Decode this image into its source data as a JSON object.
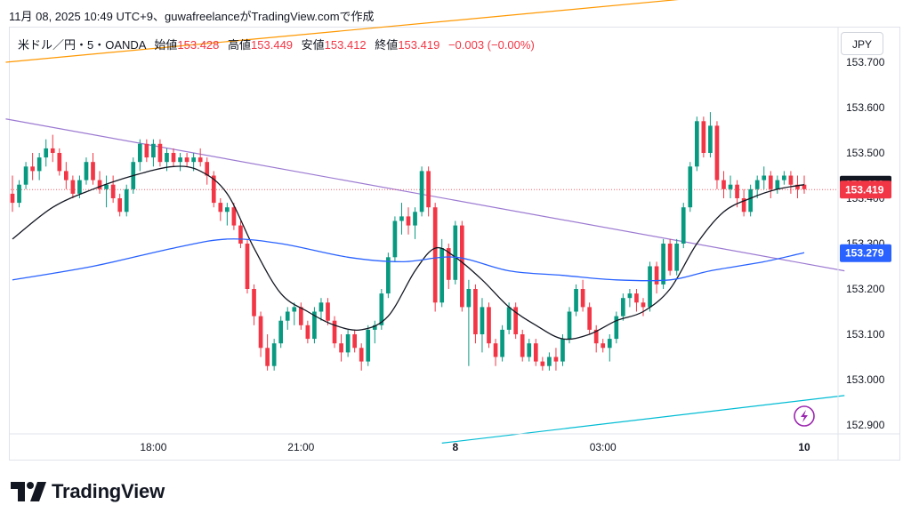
{
  "header": {
    "text": "11月 08, 2025 10:49 UTC+9、guwafreelanceがTradingView.comで作成"
  },
  "legend": {
    "symbol": "米ドル／円・5・OANDA",
    "open_label": "始値",
    "open": "153.428",
    "high_label": "高値",
    "high": "153.449",
    "low_label": "安値",
    "low": "153.412",
    "close_label": "終値",
    "close": "153.419",
    "change": "−0.003 (−0.00%)"
  },
  "currency_button": "JPY",
  "footer": {
    "brand": "TradingView"
  },
  "colors": {
    "up": "#089981",
    "down": "#f23645",
    "ma_short": "#131722",
    "ma_long": "#2962ff",
    "trend_upper": "#ff9800",
    "trend_mid": "#9c7ad2",
    "trend_lower": "#00bcd4"
  },
  "chart_data": {
    "type": "candlestick",
    "symbol": "USDJPY 5",
    "ylim": [
      152.86,
      153.74
    ],
    "y_ticks": [
      "153.700",
      "153.600",
      "153.500",
      "153.400",
      "153.300",
      "153.200",
      "153.100",
      "153.000",
      "152.900"
    ],
    "x_ticks": [
      "18:00",
      "21:00",
      "8",
      "03:00",
      "10"
    ],
    "price_labels": [
      {
        "value": "153.430",
        "style": "dark"
      },
      {
        "value": "153.419",
        "style": "red"
      },
      {
        "value": "153.279",
        "style": "blue"
      }
    ],
    "candles_ohlc": [
      [
        153.41,
        153.45,
        153.37,
        153.39
      ],
      [
        153.39,
        153.44,
        153.38,
        153.43
      ],
      [
        153.43,
        153.48,
        153.42,
        153.47
      ],
      [
        153.47,
        153.5,
        153.44,
        153.46
      ],
      [
        153.46,
        153.5,
        153.44,
        153.49
      ],
      [
        153.49,
        153.53,
        153.47,
        153.51
      ],
      [
        153.51,
        153.54,
        153.48,
        153.5
      ],
      [
        153.5,
        153.51,
        153.45,
        153.46
      ],
      [
        153.46,
        153.48,
        153.42,
        153.44
      ],
      [
        153.44,
        153.45,
        153.4,
        153.41
      ],
      [
        153.41,
        153.45,
        153.4,
        153.44
      ],
      [
        153.44,
        153.49,
        153.43,
        153.48
      ],
      [
        153.48,
        153.5,
        153.43,
        153.44
      ],
      [
        153.44,
        153.46,
        153.41,
        153.42
      ],
      [
        153.42,
        153.45,
        153.38,
        153.43
      ],
      [
        153.43,
        153.45,
        153.39,
        153.4
      ],
      [
        153.4,
        153.41,
        153.36,
        153.37
      ],
      [
        153.37,
        153.43,
        153.36,
        153.42
      ],
      [
        153.42,
        153.49,
        153.41,
        153.48
      ],
      [
        153.48,
        153.53,
        153.46,
        153.52
      ],
      [
        153.52,
        153.53,
        153.48,
        153.49
      ],
      [
        153.49,
        153.53,
        153.47,
        153.52
      ],
      [
        153.52,
        153.53,
        153.47,
        153.48
      ],
      [
        153.48,
        153.51,
        153.46,
        153.5
      ],
      [
        153.5,
        153.51,
        153.47,
        153.48
      ],
      [
        153.48,
        153.5,
        153.46,
        153.49
      ],
      [
        153.49,
        153.5,
        153.47,
        153.48
      ],
      [
        153.48,
        153.5,
        153.46,
        153.49
      ],
      [
        153.49,
        153.51,
        153.47,
        153.48
      ],
      [
        153.48,
        153.49,
        153.43,
        153.45
      ],
      [
        153.45,
        153.46,
        153.38,
        153.39
      ],
      [
        153.39,
        153.4,
        153.35,
        153.37
      ],
      [
        153.37,
        153.39,
        153.34,
        153.38
      ],
      [
        153.38,
        153.39,
        153.33,
        153.34
      ],
      [
        153.34,
        153.35,
        153.29,
        153.3
      ],
      [
        153.3,
        153.31,
        153.19,
        153.2
      ],
      [
        153.2,
        153.21,
        153.12,
        153.14
      ],
      [
        153.14,
        153.15,
        153.05,
        153.07
      ],
      [
        153.07,
        153.1,
        153.02,
        153.03
      ],
      [
        153.03,
        153.09,
        153.02,
        153.08
      ],
      [
        153.08,
        153.14,
        153.07,
        153.13
      ],
      [
        153.13,
        153.16,
        153.11,
        153.15
      ],
      [
        153.15,
        153.17,
        153.12,
        153.16
      ],
      [
        153.16,
        153.17,
        153.11,
        153.12
      ],
      [
        153.12,
        153.13,
        153.08,
        153.09
      ],
      [
        153.09,
        153.16,
        153.08,
        153.15
      ],
      [
        153.15,
        153.18,
        153.13,
        153.17
      ],
      [
        153.17,
        153.18,
        153.12,
        153.13
      ],
      [
        153.13,
        153.14,
        153.07,
        153.08
      ],
      [
        153.08,
        153.1,
        153.04,
        153.06
      ],
      [
        153.06,
        153.11,
        153.05,
        153.1
      ],
      [
        153.1,
        153.11,
        153.06,
        153.07
      ],
      [
        153.07,
        153.08,
        153.02,
        153.04
      ],
      [
        153.04,
        153.12,
        153.03,
        153.11
      ],
      [
        153.11,
        153.13,
        153.08,
        153.12
      ],
      [
        153.12,
        153.2,
        153.11,
        153.19
      ],
      [
        153.19,
        153.28,
        153.18,
        153.27
      ],
      [
        153.27,
        153.36,
        153.26,
        153.35
      ],
      [
        153.35,
        153.39,
        153.32,
        153.36
      ],
      [
        153.36,
        153.38,
        153.32,
        153.34
      ],
      [
        153.34,
        153.38,
        153.31,
        153.37
      ],
      [
        153.37,
        153.47,
        153.36,
        153.46
      ],
      [
        153.46,
        153.47,
        153.36,
        153.38
      ],
      [
        153.38,
        153.39,
        153.15,
        153.17
      ],
      [
        153.17,
        153.31,
        153.16,
        153.29
      ],
      [
        153.29,
        153.3,
        153.2,
        153.22
      ],
      [
        153.22,
        153.35,
        153.21,
        153.34
      ],
      [
        153.34,
        153.35,
        153.15,
        153.16
      ],
      [
        153.16,
        153.22,
        153.03,
        153.2
      ],
      [
        153.2,
        153.21,
        153.08,
        153.1
      ],
      [
        153.1,
        153.18,
        153.06,
        153.16
      ],
      [
        153.16,
        153.17,
        153.07,
        153.08
      ],
      [
        153.08,
        153.09,
        153.03,
        153.05
      ],
      [
        153.05,
        153.12,
        153.04,
        153.11
      ],
      [
        153.11,
        153.17,
        153.1,
        153.16
      ],
      [
        153.16,
        153.17,
        153.09,
        153.1
      ],
      [
        153.1,
        153.11,
        153.04,
        153.05
      ],
      [
        153.05,
        153.09,
        153.04,
        153.08
      ],
      [
        153.08,
        153.09,
        153.03,
        153.04
      ],
      [
        153.04,
        153.05,
        153.02,
        153.03
      ],
      [
        153.03,
        153.06,
        153.02,
        153.05
      ],
      [
        153.05,
        153.07,
        153.02,
        153.04
      ],
      [
        153.04,
        153.1,
        153.03,
        153.09
      ],
      [
        153.09,
        153.16,
        153.08,
        153.15
      ],
      [
        153.15,
        153.21,
        153.14,
        153.2
      ],
      [
        153.2,
        153.22,
        153.15,
        153.16
      ],
      [
        153.16,
        153.17,
        153.1,
        153.11
      ],
      [
        153.11,
        153.12,
        153.06,
        153.08
      ],
      [
        153.08,
        153.09,
        153.06,
        153.07
      ],
      [
        153.07,
        153.1,
        153.04,
        153.09
      ],
      [
        153.09,
        153.15,
        153.08,
        153.14
      ],
      [
        153.14,
        153.19,
        153.13,
        153.18
      ],
      [
        153.18,
        153.2,
        153.16,
        153.19
      ],
      [
        153.19,
        153.2,
        153.15,
        153.17
      ],
      [
        153.17,
        153.18,
        153.14,
        153.16
      ],
      [
        153.16,
        153.26,
        153.15,
        153.25
      ],
      [
        153.25,
        153.26,
        153.19,
        153.21
      ],
      [
        153.21,
        153.31,
        153.2,
        153.3
      ],
      [
        153.3,
        153.31,
        153.23,
        153.24
      ],
      [
        153.24,
        153.31,
        153.23,
        153.3
      ],
      [
        153.3,
        153.39,
        153.29,
        153.38
      ],
      [
        153.38,
        153.48,
        153.37,
        153.47
      ],
      [
        153.47,
        153.58,
        153.46,
        153.57
      ],
      [
        153.57,
        153.58,
        153.49,
        153.5
      ],
      [
        153.5,
        153.59,
        153.49,
        153.56
      ],
      [
        153.56,
        153.57,
        153.42,
        153.44
      ],
      [
        153.44,
        153.46,
        153.4,
        153.42
      ],
      [
        153.42,
        153.45,
        153.4,
        153.43
      ],
      [
        153.43,
        153.44,
        153.38,
        153.4
      ],
      [
        153.4,
        153.42,
        153.36,
        153.37
      ],
      [
        153.37,
        153.43,
        153.36,
        153.42
      ],
      [
        153.42,
        153.45,
        153.4,
        153.44
      ],
      [
        153.44,
        153.47,
        153.42,
        153.45
      ],
      [
        153.45,
        153.46,
        153.4,
        153.42
      ],
      [
        153.42,
        153.45,
        153.41,
        153.44
      ],
      [
        153.44,
        153.46,
        153.43,
        153.45
      ],
      [
        153.45,
        153.46,
        153.41,
        153.43
      ],
      [
        153.43,
        153.45,
        153.4,
        153.42
      ],
      [
        153.43,
        153.45,
        153.41,
        153.42
      ]
    ],
    "moving_averages": [
      {
        "name": "short",
        "color": "#131722",
        "points": [
          [
            0,
            153.31
          ],
          [
            6,
            153.38
          ],
          [
            12,
            153.42
          ],
          [
            18,
            153.45
          ],
          [
            24,
            153.47
          ],
          [
            28,
            153.46
          ],
          [
            32,
            153.41
          ],
          [
            36,
            153.29
          ],
          [
            40,
            153.19
          ],
          [
            44,
            153.15
          ],
          [
            48,
            153.12
          ],
          [
            52,
            153.11
          ],
          [
            56,
            153.14
          ],
          [
            60,
            153.24
          ],
          [
            63,
            153.29
          ],
          [
            66,
            153.27
          ],
          [
            70,
            153.22
          ],
          [
            74,
            153.16
          ],
          [
            78,
            153.12
          ],
          [
            82,
            153.09
          ],
          [
            86,
            153.1
          ],
          [
            90,
            153.13
          ],
          [
            94,
            153.15
          ],
          [
            98,
            153.2
          ],
          [
            102,
            153.3
          ],
          [
            106,
            153.37
          ],
          [
            110,
            153.4
          ],
          [
            114,
            153.42
          ],
          [
            118,
            153.43
          ]
        ]
      },
      {
        "name": "long",
        "color": "#2962ff",
        "points": [
          [
            0,
            153.22
          ],
          [
            12,
            153.25
          ],
          [
            24,
            153.29
          ],
          [
            32,
            153.31
          ],
          [
            40,
            153.3
          ],
          [
            50,
            153.27
          ],
          [
            58,
            153.26
          ],
          [
            66,
            153.27
          ],
          [
            74,
            153.24
          ],
          [
            82,
            153.23
          ],
          [
            90,
            153.22
          ],
          [
            98,
            153.22
          ],
          [
            104,
            153.24
          ],
          [
            112,
            153.26
          ],
          [
            118,
            153.28
          ]
        ]
      }
    ],
    "trendlines": [
      {
        "name": "upper",
        "color": "#ff9800",
        "from": [
          -1,
          153.7
        ],
        "to": [
          115,
          153.86
        ]
      },
      {
        "name": "mid",
        "color": "#9c7ad2",
        "from": [
          -1,
          153.575
        ],
        "to": [
          124,
          153.24
        ]
      },
      {
        "name": "lower",
        "color": "#00bcd4",
        "from": [
          64,
          152.86
        ],
        "to": [
          124,
          152.965
        ]
      }
    ],
    "reference_line": {
      "value": 153.419,
      "color": "#f23645"
    }
  }
}
